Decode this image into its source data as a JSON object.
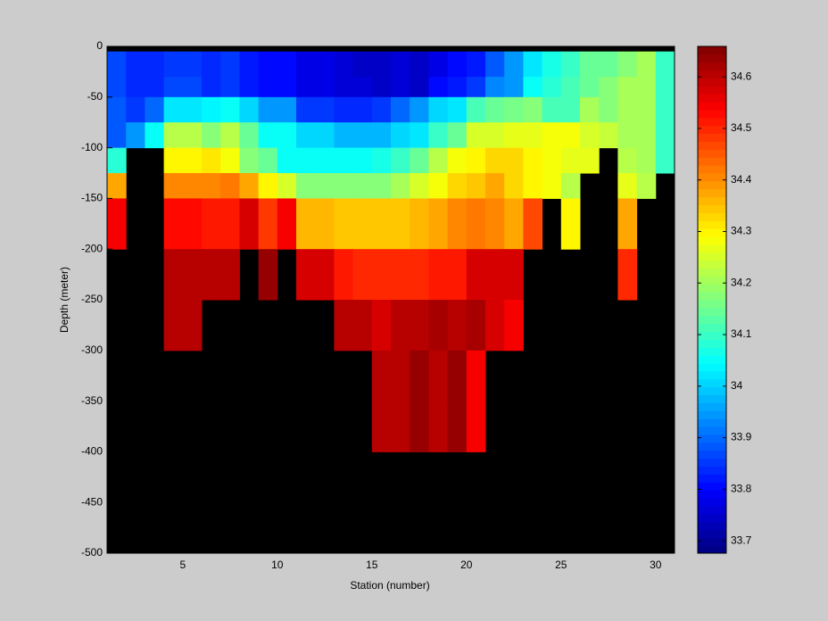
{
  "chart_data": {
    "type": "heatmap",
    "xlabel": "Station (number)",
    "ylabel": "Depth (meter)",
    "x_edges": [
      1,
      2,
      3,
      4,
      5,
      6,
      7,
      8,
      9,
      10,
      11,
      12,
      13,
      14,
      15,
      16,
      17,
      18,
      19,
      20,
      21,
      22,
      23,
      24,
      25,
      26,
      27,
      28,
      29,
      30,
      31
    ],
    "y_edges": [
      -5,
      -30,
      -50,
      -75,
      -100,
      -125,
      -150,
      -200,
      -250,
      -300,
      -350,
      -400
    ],
    "values": [
      [
        33.87,
        33.83,
        33.83,
        33.86,
        33.86,
        33.84,
        33.86,
        33.82,
        33.8,
        33.8,
        33.78,
        33.78,
        33.76,
        33.75,
        33.75,
        33.76,
        33.75,
        33.78,
        33.8,
        33.82,
        33.88,
        33.95,
        34.02,
        34.07,
        34.1,
        34.14,
        34.15,
        34.18,
        34.2,
        34.1
      ],
      [
        33.87,
        33.83,
        33.84,
        33.87,
        33.87,
        33.84,
        33.86,
        33.82,
        33.8,
        33.8,
        33.78,
        33.78,
        33.76,
        33.76,
        33.75,
        33.76,
        33.75,
        33.8,
        33.82,
        33.86,
        33.93,
        33.95,
        34.05,
        34.08,
        34.12,
        34.14,
        34.18,
        34.2,
        34.2,
        34.1
      ],
      [
        33.88,
        33.86,
        33.9,
        34.02,
        34.02,
        34.03,
        34.05,
        34.0,
        33.95,
        33.95,
        33.86,
        33.86,
        33.84,
        33.84,
        33.86,
        33.9,
        33.95,
        34.0,
        34.02,
        34.12,
        34.15,
        34.16,
        34.18,
        34.12,
        34.12,
        34.2,
        34.18,
        34.2,
        34.2,
        34.1
      ],
      [
        33.88,
        33.95,
        34.05,
        34.22,
        34.22,
        34.18,
        34.22,
        34.15,
        34.05,
        34.05,
        34.0,
        34.0,
        33.98,
        33.98,
        33.98,
        34.0,
        34.02,
        34.1,
        34.15,
        34.25,
        34.25,
        34.26,
        34.27,
        34.28,
        34.28,
        34.25,
        34.24,
        34.2,
        34.2,
        34.1
      ],
      [
        34.08,
        null,
        null,
        34.3,
        34.3,
        34.32,
        34.28,
        34.18,
        34.14,
        34.05,
        34.05,
        34.05,
        34.05,
        34.05,
        34.07,
        34.1,
        34.15,
        34.22,
        34.28,
        34.3,
        34.33,
        34.33,
        34.3,
        34.28,
        34.26,
        34.27,
        null,
        34.22,
        34.2,
        34.1
      ],
      [
        34.38,
        null,
        null,
        34.4,
        34.4,
        34.4,
        34.42,
        34.38,
        34.3,
        34.25,
        34.18,
        34.18,
        34.18,
        34.18,
        34.18,
        34.2,
        34.25,
        34.28,
        34.33,
        34.35,
        34.38,
        34.33,
        34.3,
        34.28,
        34.22,
        null,
        null,
        34.26,
        34.22,
        null
      ],
      [
        34.54,
        null,
        null,
        34.53,
        34.53,
        34.51,
        34.51,
        34.58,
        34.48,
        34.55,
        34.36,
        34.36,
        34.35,
        34.35,
        34.34,
        34.34,
        34.36,
        34.38,
        34.4,
        34.42,
        34.4,
        34.38,
        34.47,
        null,
        34.3,
        null,
        null,
        34.38,
        null,
        null
      ],
      [
        null,
        null,
        null,
        34.6,
        34.6,
        34.6,
        34.6,
        null,
        34.64,
        null,
        34.57,
        34.57,
        34.52,
        34.5,
        34.5,
        34.5,
        34.5,
        34.52,
        34.52,
        34.57,
        34.58,
        34.58,
        null,
        null,
        null,
        null,
        null,
        34.5,
        null,
        null
      ],
      [
        null,
        null,
        null,
        34.6,
        34.6,
        null,
        null,
        null,
        null,
        null,
        null,
        null,
        34.6,
        34.6,
        34.57,
        34.6,
        34.6,
        34.62,
        34.6,
        34.62,
        34.58,
        34.55,
        null,
        null,
        null,
        null,
        null,
        null,
        null,
        null
      ],
      [
        null,
        null,
        null,
        null,
        null,
        null,
        null,
        null,
        null,
        null,
        null,
        null,
        null,
        null,
        34.61,
        34.61,
        34.64,
        34.61,
        34.64,
        34.55,
        null,
        null,
        null,
        null,
        null,
        null,
        null,
        null,
        null,
        null
      ],
      [
        null,
        null,
        null,
        null,
        null,
        null,
        null,
        null,
        null,
        null,
        null,
        null,
        null,
        null,
        34.61,
        34.61,
        34.64,
        34.61,
        34.64,
        34.55,
        null,
        null,
        null,
        null,
        null,
        null,
        null,
        null,
        null,
        null
      ]
    ],
    "xlim": [
      1,
      31
    ],
    "ylim": [
      -500,
      0
    ],
    "xticks": [
      5,
      10,
      15,
      20,
      25,
      30
    ],
    "yticks": [
      0,
      -50,
      -100,
      -150,
      -200,
      -250,
      -300,
      -350,
      -400,
      -450,
      -500
    ],
    "colormap": "jet",
    "colormap_levels": 64,
    "missing_color": "#000000",
    "clim": [
      33.676,
      34.659
    ],
    "cticks": [
      33.7,
      33.8,
      33.9,
      34,
      34.1,
      34.2,
      34.3,
      34.4,
      34.5,
      34.6
    ]
  }
}
